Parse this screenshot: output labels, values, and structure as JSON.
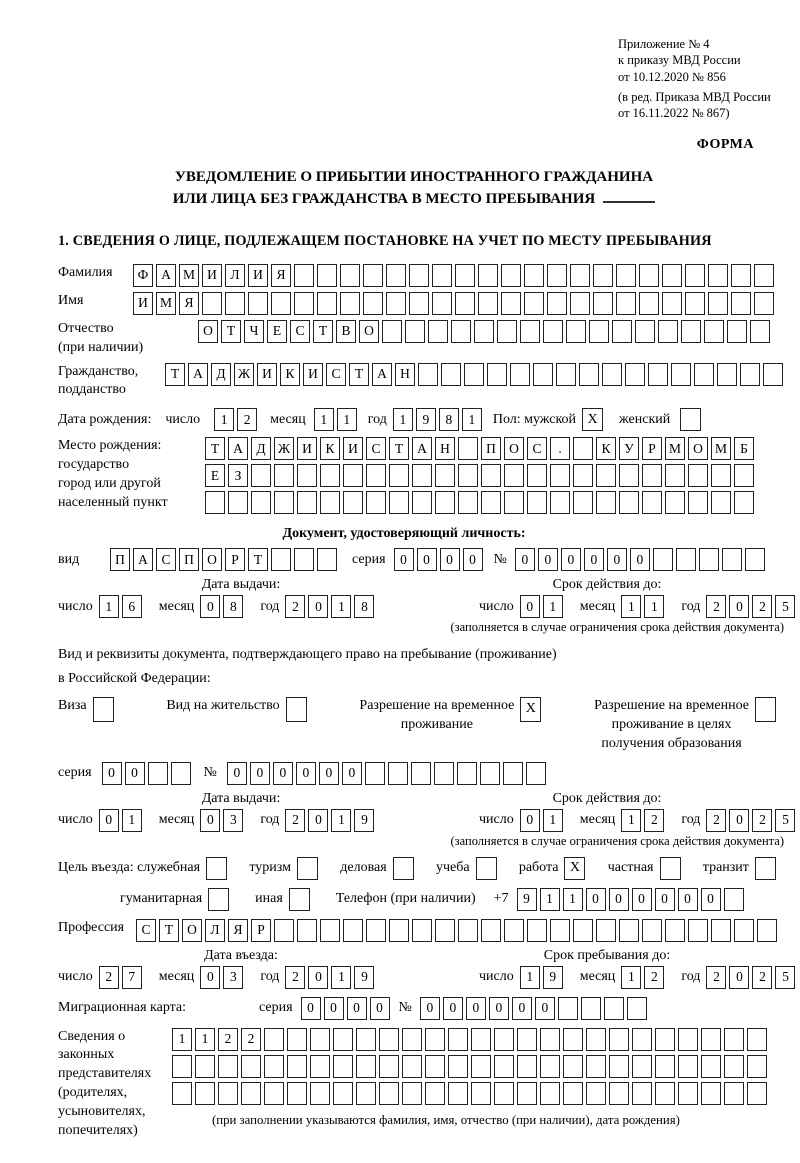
{
  "header": {
    "annex_lines": [
      "Приложение № 4",
      "к приказу МВД России",
      "от 10.12.2020 № 856"
    ],
    "annex_note_lines": [
      "(в ред. Приказа МВД России",
      "от 16.11.2022 № 867)"
    ],
    "form_marker": "ФОРМА",
    "title_line1": "УВЕДОМЛЕНИЕ О ПРИБЫТИИ ИНОСТРАННОГО ГРАЖДАНИНА",
    "title_line2": "ИЛИ ЛИЦА БЕЗ ГРАЖДАНСТВА В МЕСТО ПРЕБЫВАНИЯ",
    "section1_heading": "1. СВЕДЕНИЯ О ЛИЦЕ, ПОДЛЕЖАЩЕМ ПОСТАНОВКЕ НА УЧЕТ ПО МЕСТУ ПРЕБЫВАНИЯ"
  },
  "labels": {
    "surname": "Фамилия",
    "name": "Имя",
    "patronymic": "Отчество\n(при наличии)",
    "citizenship": "Гражданство,\nподданство",
    "birth_date": "Дата рождения:",
    "day": "число",
    "month": "месяц",
    "year": "год",
    "sex": "Пол: мужской",
    "female": "женский",
    "birth_place": "Место рождения:\nгосударство\nгород или другой\nнаселенный пункт",
    "identity_doc_heading": "Документ, удостоверяющий личность:",
    "doc_type": "вид",
    "series": "серия",
    "number": "№",
    "issue_date_heading": "Дата выдачи:",
    "expiry_heading": "Срок действия до:",
    "expiry_note": "(заполняется в случае ограничения срока действия документа)",
    "resid_doc_line1": "Вид и реквизиты документа, подтверждающего право на пребывание (проживание)",
    "resid_doc_line2": "в Российской Федерации:",
    "visa": "Виза",
    "residence_permit": "Вид на жительство",
    "temp_residence": "Разрешение на временное\nпроживание",
    "temp_residence_edu": "Разрешение на временное\nпроживание в целях\nполучения образования",
    "entry_purpose": "Цель въезда: служебная",
    "tourism": "туризм",
    "business": "деловая",
    "study": "учеба",
    "work": "работа",
    "private": "частная",
    "transit": "транзит",
    "humanitarian": "гуманитарная",
    "other": "иная",
    "phone": "Телефон (при наличии)",
    "phone_prefix": "+7",
    "profession": "Профессия",
    "entry_date_heading": "Дата въезда:",
    "stay_until_heading": "Срок пребывания до:",
    "migration_card": "Миграционная карта:",
    "legal_reps": "Сведения о\nзаконных\nпредставителях\n(родителях,\nусыновителях,\nпопечителях)",
    "legal_reps_note": "(при заполнении указываются фамилия, имя, отчество (при наличии), дата рождения)"
  },
  "cells": {
    "surname": {
      "chars": "ФАМИЛИЯ",
      "total": 28
    },
    "name": {
      "chars": "ИМЯ",
      "total": 28
    },
    "patronymic": {
      "chars": "ОТЧЕСТВО",
      "total": 25
    },
    "citizenship": {
      "chars": "ТАДЖИКИСТАН",
      "total": 27
    },
    "birth_day": {
      "chars": "12",
      "total": 2
    },
    "birth_month": {
      "chars": "11",
      "total": 2
    },
    "birth_year": {
      "chars": "1981",
      "total": 4
    },
    "birthplace_row1": {
      "chars": "ТАДЖИКИСТАН ПОС. КУРМОМБ",
      "total": 24
    },
    "birthplace_row2": {
      "chars": "ЕЗ",
      "total": 24
    },
    "birthplace_row3": {
      "chars": "",
      "total": 24
    },
    "doc_type": {
      "chars": "ПАСПОРТ",
      "total": 10
    },
    "doc_series": {
      "chars": "0000",
      "total": 4
    },
    "doc_number": {
      "chars": "000000",
      "total": 11
    },
    "pass_issue_day": {
      "chars": "16",
      "total": 2
    },
    "pass_issue_month": {
      "chars": "08",
      "total": 2
    },
    "pass_issue_year": {
      "chars": "2018",
      "total": 4
    },
    "pass_expiry_day": {
      "chars": "01",
      "total": 2
    },
    "pass_expiry_month": {
      "chars": "11",
      "total": 2
    },
    "pass_expiry_year": {
      "chars": "2025",
      "total": 4
    },
    "resid_series": {
      "chars": "00",
      "total": 4
    },
    "resid_number": {
      "chars": "000000",
      "total": 14
    },
    "resid_issue_day": {
      "chars": "01",
      "total": 2
    },
    "resid_issue_month": {
      "chars": "03",
      "total": 2
    },
    "resid_issue_year": {
      "chars": "2019",
      "total": 4
    },
    "resid_expiry_day": {
      "chars": "01",
      "total": 2
    },
    "resid_expiry_month": {
      "chars": "12",
      "total": 2
    },
    "resid_expiry_year": {
      "chars": "2025",
      "total": 4
    },
    "phone": {
      "chars": "911000000",
      "total": 10
    },
    "profession": {
      "chars": "СТОЛЯР",
      "total": 28
    },
    "entry_day": {
      "chars": "27",
      "total": 2
    },
    "entry_month": {
      "chars": "03",
      "total": 2
    },
    "entry_year": {
      "chars": "2019",
      "total": 4
    },
    "stay_day": {
      "chars": "19",
      "total": 2
    },
    "stay_month": {
      "chars": "12",
      "total": 2
    },
    "stay_year": {
      "chars": "2025",
      "total": 4
    },
    "mig_series": {
      "chars": "0000",
      "total": 4
    },
    "mig_number": {
      "chars": "000000",
      "total": 10
    },
    "reps_row1": {
      "chars": "1122",
      "total": 26
    },
    "reps_row2": {
      "chars": "",
      "total": 26
    },
    "reps_row3": {
      "chars": "",
      "total": 26
    }
  },
  "checkboxes": {
    "male": "X",
    "female": "",
    "visa": "",
    "residence_permit": "",
    "temp_residence": "X",
    "temp_residence_edu": "",
    "official": "",
    "tourism": "",
    "business": "",
    "study": "",
    "work": "X",
    "private": "",
    "transit": "",
    "humanitarian": "",
    "other": ""
  }
}
